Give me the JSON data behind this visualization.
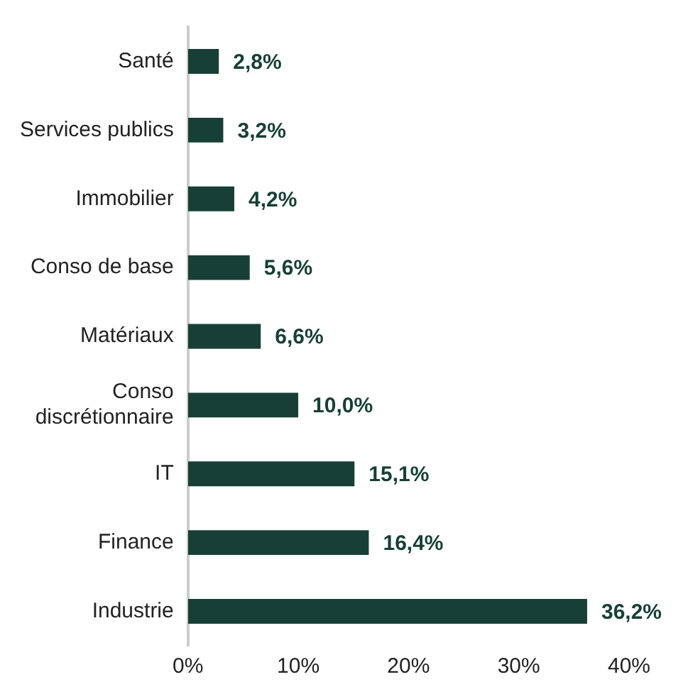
{
  "chart_data": {
    "type": "bar",
    "orientation": "horizontal",
    "categories": [
      "Santé",
      "Services publics",
      "Immobilier",
      "Conso de base",
      "Matériaux",
      "Conso discrétionnaire",
      "IT",
      "Finance",
      "Industrie"
    ],
    "values": [
      2.8,
      3.2,
      4.2,
      5.6,
      6.6,
      10.0,
      15.1,
      16.4,
      36.2
    ],
    "value_labels": [
      "2,8%",
      "3,2%",
      "4,2%",
      "5,6%",
      "6,6%",
      "10,0%",
      "15,1%",
      "16,4%",
      "36,2%"
    ],
    "color": "#173f35",
    "xlim": [
      0,
      40
    ],
    "xticks": [
      {
        "value": 0,
        "label": "0%"
      },
      {
        "value": 10,
        "label": "10%"
      },
      {
        "value": 20,
        "label": "20%"
      },
      {
        "value": 30,
        "label": "30%"
      },
      {
        "value": 40,
        "label": "40%"
      }
    ],
    "grid": false,
    "legend": false
  }
}
